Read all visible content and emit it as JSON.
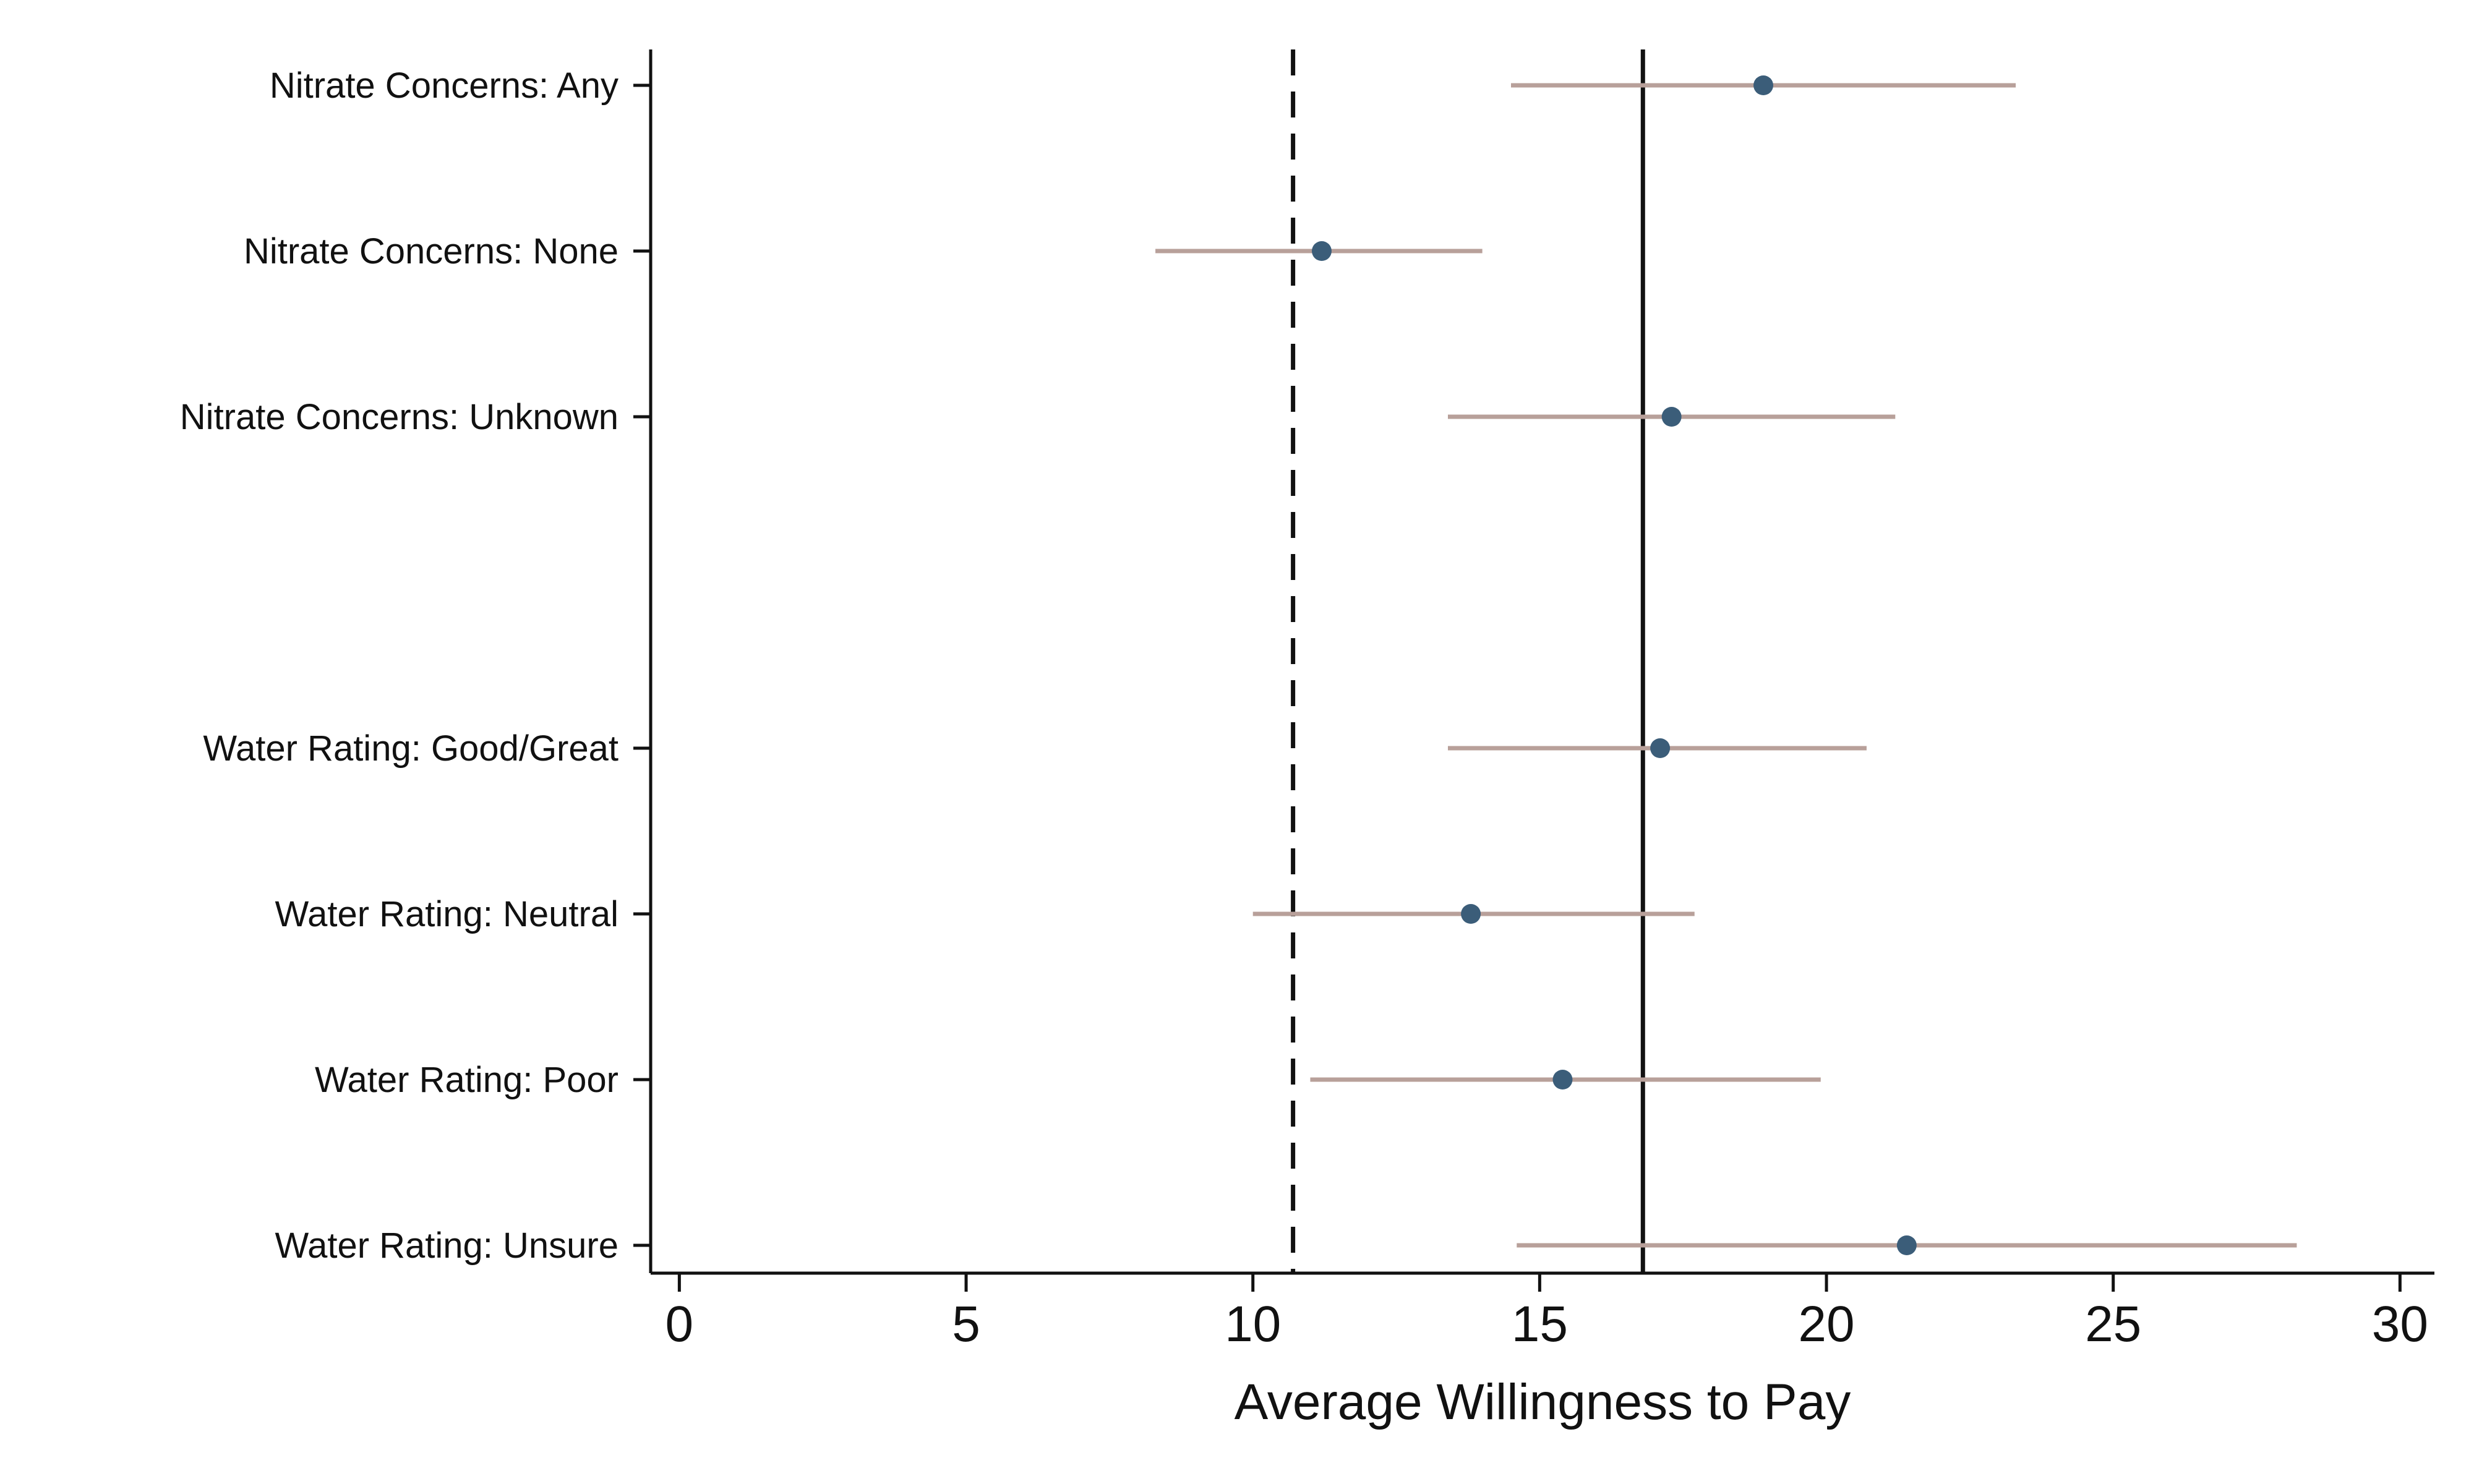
{
  "chart_data": {
    "type": "scatter",
    "title": "",
    "xlabel": "Average Willingness to Pay",
    "ylabel": "",
    "xlim": [
      -0.5,
      30.6
    ],
    "x_ticks": [
      0,
      5,
      10,
      15,
      20,
      25,
      30
    ],
    "grid": false,
    "legend": "none",
    "categories": [
      "Nitrate Concerns: Any",
      "Nitrate Concerns: None",
      "Nitrate Concerns: Unknown",
      "Water Rating: Good/Great",
      "Water Rating: Neutral",
      "Water Rating: Poor",
      "Water Rating: Unsure"
    ],
    "positions": [
      0,
      1,
      2,
      4,
      5,
      6,
      7
    ],
    "estimates": [
      18.9,
      11.2,
      17.3,
      17.1,
      13.8,
      15.4,
      21.4
    ],
    "ci_low": [
      14.5,
      8.3,
      13.4,
      13.4,
      10.0,
      11.0,
      14.6
    ],
    "ci_high": [
      23.3,
      14.0,
      21.2,
      20.7,
      17.7,
      19.9,
      28.2
    ],
    "reference_lines": [
      {
        "value": 16.8,
        "style": "solid"
      },
      {
        "value": 10.7,
        "style": "dashed"
      }
    ],
    "colors": {
      "point": "#3b5d79",
      "ci": "#b8a09a",
      "axis": "#111111"
    }
  }
}
